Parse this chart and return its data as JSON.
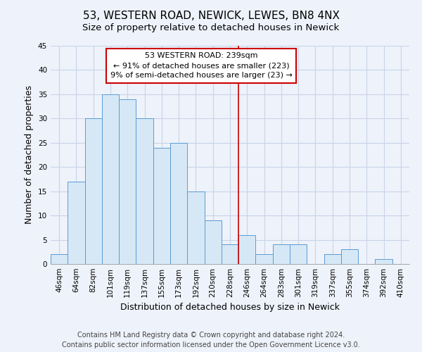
{
  "title": "53, WESTERN ROAD, NEWICK, LEWES, BN8 4NX",
  "subtitle": "Size of property relative to detached houses in Newick",
  "xlabel": "Distribution of detached houses by size in Newick",
  "ylabel": "Number of detached properties",
  "categories": [
    "46sqm",
    "64sqm",
    "82sqm",
    "101sqm",
    "119sqm",
    "137sqm",
    "155sqm",
    "173sqm",
    "192sqm",
    "210sqm",
    "228sqm",
    "246sqm",
    "264sqm",
    "283sqm",
    "301sqm",
    "319sqm",
    "337sqm",
    "355sqm",
    "374sqm",
    "392sqm",
    "410sqm"
  ],
  "values": [
    2,
    17,
    30,
    35,
    34,
    30,
    24,
    25,
    15,
    9,
    4,
    6,
    2,
    4,
    4,
    0,
    2,
    3,
    0,
    1,
    0
  ],
  "bar_color": "#d6e8f5",
  "bar_edge_color": "#5b9bd5",
  "ylim": [
    0,
    45
  ],
  "yticks": [
    0,
    5,
    10,
    15,
    20,
    25,
    30,
    35,
    40,
    45
  ],
  "vline_x_index": 10.5,
  "vline_color": "#cc0000",
  "annotation_title": "53 WESTERN ROAD: 239sqm",
  "annotation_line1": "← 91% of detached houses are smaller (223)",
  "annotation_line2": "9% of semi-detached houses are larger (23) →",
  "footer1": "Contains HM Land Registry data © Crown copyright and database right 2024.",
  "footer2": "Contains public sector information licensed under the Open Government Licence v3.0.",
  "background_color": "#eef2fa",
  "grid_color": "#c8d4e8",
  "title_fontsize": 11,
  "subtitle_fontsize": 9.5,
  "axis_label_fontsize": 9,
  "tick_fontsize": 7.5,
  "footer_fontsize": 7
}
